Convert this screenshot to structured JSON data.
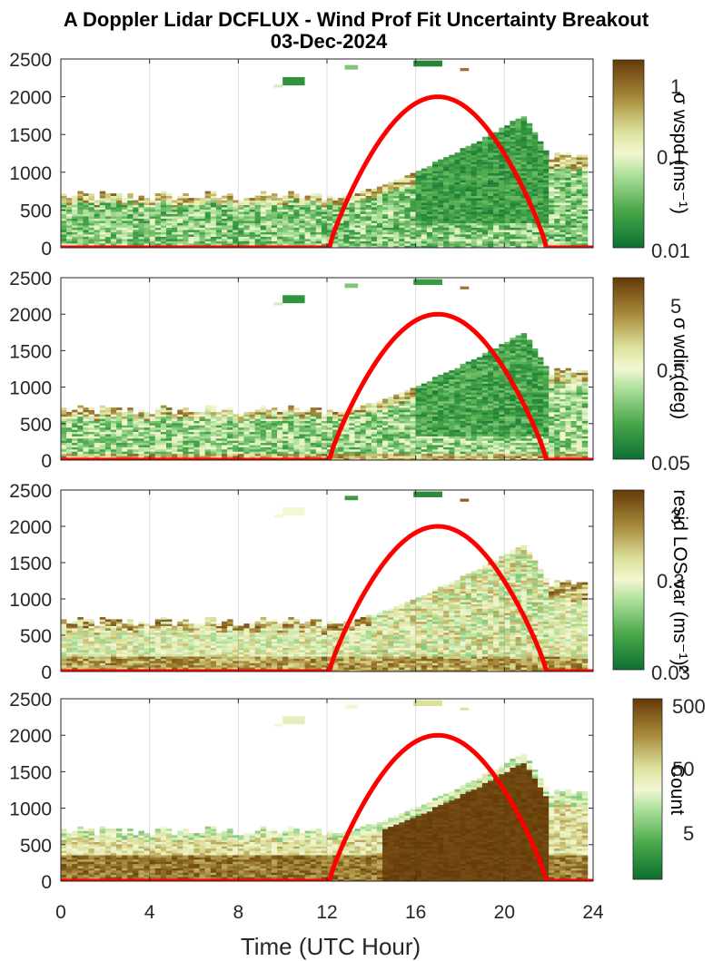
{
  "figure": {
    "title_line1": "A Doppler Lidar DCFLUX - Wind Prof Fit Uncertainty Breakout",
    "title_line2": "03-Dec-2024",
    "xlabel": "Time (UTC Hour)"
  },
  "chart_data": [
    {
      "type": "heatmap",
      "cbar_label": "σ wspd (ms⁻¹)",
      "cbar_ticks": [
        "1",
        "0.1",
        "0.01"
      ],
      "cbar_scale": "log",
      "xlim": [
        0,
        24
      ],
      "ylim": [
        0,
        2500
      ],
      "xticks": [
        "0",
        "4",
        "8",
        "12",
        "16",
        "20",
        "24"
      ],
      "yticks": [
        "0",
        "500",
        "1000",
        "1500",
        "2000",
        "2500"
      ],
      "grid": "vertical",
      "overlay": {
        "name": "",
        "color": "#ff0000",
        "x": [
          0,
          12.1,
          14,
          17,
          20,
          21.9,
          24
        ],
        "y": [
          0,
          0,
          1470,
          2000,
          1470,
          0,
          0
        ]
      }
    },
    {
      "type": "heatmap",
      "cbar_label": "σ wdir (deg)",
      "cbar_ticks": [
        "5",
        "0.5",
        "0.05"
      ],
      "cbar_scale": "log",
      "xlim": [
        0,
        24
      ],
      "ylim": [
        0,
        2500
      ],
      "xticks": [
        "0",
        "4",
        "8",
        "12",
        "16",
        "20",
        "24"
      ],
      "yticks": [
        "0",
        "500",
        "1000",
        "1500",
        "2000",
        "2500"
      ],
      "grid": "vertical",
      "overlay": {
        "name": "",
        "color": "#ff0000",
        "x": [
          0,
          12.1,
          14,
          17,
          20,
          21.9,
          24
        ],
        "y": [
          0,
          0,
          1470,
          2000,
          1470,
          0,
          0
        ]
      }
    },
    {
      "type": "heatmap",
      "cbar_label": "resid LOS var (ms⁻¹)²",
      "cbar_ticks": [
        "3",
        "0.3",
        "0.03"
      ],
      "cbar_scale": "log",
      "xlim": [
        0,
        24
      ],
      "ylim": [
        0,
        2500
      ],
      "xticks": [
        "0",
        "4",
        "8",
        "12",
        "16",
        "20",
        "24"
      ],
      "yticks": [
        "0",
        "500",
        "1000",
        "1500",
        "2000",
        "2500"
      ],
      "grid": "vertical",
      "overlay": {
        "name": "",
        "color": "#ff0000",
        "x": [
          0,
          12.1,
          14,
          17,
          20,
          21.9,
          24
        ],
        "y": [
          0,
          0,
          1470,
          2000,
          1470,
          0,
          0
        ]
      }
    },
    {
      "type": "heatmap",
      "cbar_label": "Count",
      "cbar_ticks": [
        "500",
        "50",
        "5"
      ],
      "cbar_scale": "log",
      "xlim": [
        0,
        24
      ],
      "ylim": [
        0,
        2500
      ],
      "xticks": [
        "0",
        "4",
        "8",
        "12",
        "16",
        "20",
        "24"
      ],
      "yticks": [
        "0",
        "500",
        "1000",
        "1500",
        "2000",
        "2500"
      ],
      "grid": "vertical",
      "overlay": {
        "name": "",
        "color": "#ff0000",
        "x": [
          0,
          12.1,
          14,
          17,
          20,
          21.9,
          24
        ],
        "y": [
          0,
          0,
          1470,
          2000,
          1470,
          0,
          0
        ]
      }
    }
  ]
}
